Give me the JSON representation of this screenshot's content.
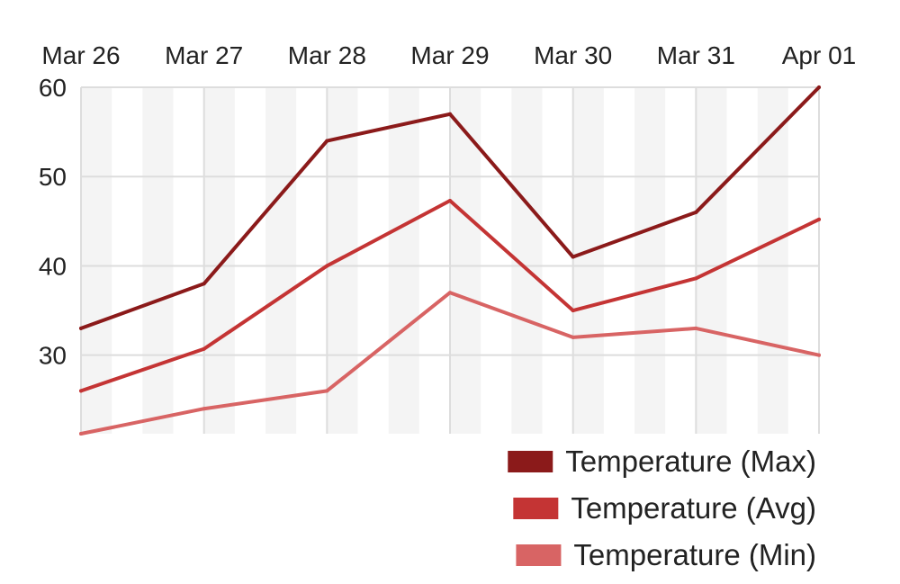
{
  "chart_data": {
    "type": "line",
    "categories": [
      "Mar 26",
      "Mar 27",
      "Mar 28",
      "Mar 29",
      "Mar 30",
      "Mar 31",
      "Apr 01"
    ],
    "x_axis_position": "top",
    "series": [
      {
        "name": "Temperature (Max)",
        "color": "#8b1a1a",
        "values": [
          33,
          38,
          54,
          57,
          41,
          46,
          60
        ]
      },
      {
        "name": "Temperature (Avg)",
        "color": "#c43434",
        "values": [
          26,
          30.7,
          40,
          47.3,
          35,
          38.6,
          45.2
        ]
      },
      {
        "name": "Temperature (Min)",
        "color": "#d86464",
        "values": [
          21.2,
          24,
          26,
          37,
          32,
          33,
          30
        ]
      }
    ],
    "yticks": [
      30,
      40,
      50,
      60
    ],
    "ylim": [
      21.2,
      60
    ],
    "grid": true,
    "background_bands": true,
    "legend_position": "bottom-right"
  }
}
